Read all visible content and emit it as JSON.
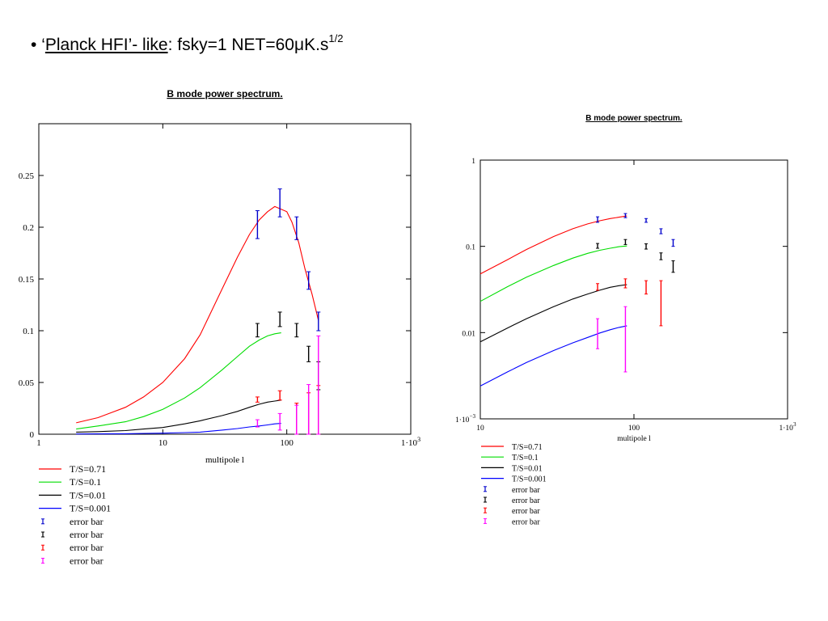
{
  "slide": {
    "bullet": "•",
    "title_open_quote": "‘",
    "title_link": "Planck HFI’- like",
    "title_rest": ": fsky=1 NET=60μK.s",
    "title_sup": "1/2"
  },
  "chart_data": [
    {
      "type": "line",
      "title": "B mode power spectrum.",
      "xlabel": "multipole l",
      "ylabel": "",
      "xscale": "log",
      "yscale": "linear",
      "xlim": [
        1,
        1000
      ],
      "ylim": [
        0,
        0.3
      ],
      "xticks": [
        {
          "v": 1,
          "t": "1"
        },
        {
          "v": 10,
          "t": "10"
        },
        {
          "v": 100,
          "t": "100"
        },
        {
          "v": 1000,
          "t": "1·10",
          "sup": "3"
        }
      ],
      "yticks": [
        {
          "v": 0,
          "t": "0"
        },
        {
          "v": 0.05,
          "t": "0.05"
        },
        {
          "v": 0.1,
          "t": "0.1"
        },
        {
          "v": 0.15,
          "t": "0.15"
        },
        {
          "v": 0.2,
          "t": "0.2"
        },
        {
          "v": 0.25,
          "t": "0.25"
        }
      ],
      "legend_position": "bottom-left",
      "series": [
        {
          "name": "T/S=0.71",
          "color": "#ff0000",
          "x": [
            2,
            3,
            5,
            7,
            10,
            15,
            20,
            30,
            40,
            50,
            60,
            70,
            80,
            100,
            110,
            125,
            140,
            160,
            180
          ],
          "y": [
            0.011,
            0.016,
            0.026,
            0.036,
            0.05,
            0.073,
            0.096,
            0.14,
            0.171,
            0.193,
            0.207,
            0.215,
            0.22,
            0.215,
            0.205,
            0.185,
            0.16,
            0.135,
            0.11
          ]
        },
        {
          "name": "T/S=0.1",
          "color": "#00dd00",
          "x": [
            2,
            3,
            5,
            7,
            10,
            15,
            20,
            30,
            40,
            50,
            60,
            70,
            80,
            90
          ],
          "y": [
            0.005,
            0.008,
            0.012,
            0.017,
            0.024,
            0.035,
            0.045,
            0.062,
            0.075,
            0.085,
            0.091,
            0.095,
            0.097,
            0.098
          ]
        },
        {
          "name": "T/S=0.01",
          "color": "#000000",
          "x": [
            2,
            3,
            5,
            7,
            10,
            15,
            20,
            30,
            40,
            50,
            60,
            70,
            80,
            90
          ],
          "y": [
            0.002,
            0.0025,
            0.0035,
            0.005,
            0.0065,
            0.01,
            0.013,
            0.018,
            0.022,
            0.026,
            0.029,
            0.031,
            0.032,
            0.033
          ]
        },
        {
          "name": "T/S=0.001",
          "color": "#0000ff",
          "x": [
            2,
            3,
            5,
            7,
            10,
            15,
            20,
            30,
            40,
            50,
            60,
            70,
            80,
            90
          ],
          "y": [
            0.0002,
            0.0003,
            0.0005,
            0.0008,
            0.001,
            0.0016,
            0.002,
            0.004,
            0.0055,
            0.007,
            0.008,
            0.009,
            0.01,
            0.0105
          ]
        }
      ],
      "error_bars": [
        {
          "name": "error bar",
          "color": "#0000cc",
          "x": [
            58,
            88,
            120,
            150,
            180
          ],
          "low": [
            0.189,
            0.21,
            0.188,
            0.14,
            0.1
          ],
          "high": [
            0.216,
            0.237,
            0.21,
            0.157,
            0.118
          ]
        },
        {
          "name": "error bar",
          "color": "#000000",
          "x": [
            58,
            88,
            120,
            150,
            180
          ],
          "low": [
            0.094,
            0.104,
            0.094,
            0.07,
            0.043
          ],
          "high": [
            0.107,
            0.118,
            0.107,
            0.085,
            0.07
          ]
        },
        {
          "name": "error bar",
          "color": "#ff0000",
          "x": [
            58,
            88,
            120,
            150,
            180
          ],
          "low": [
            0.031,
            0.033,
            0.0,
            0.0,
            0.0
          ],
          "high": [
            0.036,
            0.042,
            0.03,
            0.04,
            0.047
          ]
        },
        {
          "name": "error bar",
          "color": "#ff00ff",
          "x": [
            58,
            88,
            120,
            150,
            180
          ],
          "low": [
            0.007,
            0.004,
            0.0,
            0.0,
            0.0
          ],
          "high": [
            0.014,
            0.02,
            0.028,
            0.048,
            0.095
          ]
        }
      ]
    },
    {
      "type": "line",
      "title": "B mode power spectrum.",
      "xlabel": "multipole l",
      "ylabel": "",
      "xscale": "log",
      "yscale": "log",
      "xlim": [
        10,
        1000
      ],
      "ylim": [
        0.001,
        1
      ],
      "xticks": [
        {
          "v": 10,
          "t": "10"
        },
        {
          "v": 100,
          "t": "100"
        },
        {
          "v": 1000,
          "t": "1·10",
          "sup": "3"
        }
      ],
      "yticks": [
        {
          "v": 0.001,
          "t": "1·10",
          "sup": "−3"
        },
        {
          "v": 0.01,
          "t": "0.01"
        },
        {
          "v": 0.1,
          "t": "0.1"
        },
        {
          "v": 1,
          "t": "1"
        }
      ],
      "legend_position": "bottom-left",
      "series": [
        {
          "name": "T/S=0.71",
          "color": "#ff0000",
          "x": [
            10,
            15,
            20,
            30,
            40,
            50,
            60,
            70,
            80,
            90
          ],
          "y": [
            0.048,
            0.07,
            0.092,
            0.13,
            0.16,
            0.182,
            0.198,
            0.21,
            0.218,
            0.225
          ]
        },
        {
          "name": "T/S=0.1",
          "color": "#00dd00",
          "x": [
            10,
            15,
            20,
            30,
            40,
            50,
            60,
            70,
            80,
            90
          ],
          "y": [
            0.023,
            0.034,
            0.044,
            0.06,
            0.073,
            0.083,
            0.09,
            0.095,
            0.099,
            0.101
          ]
        },
        {
          "name": "T/S=0.01",
          "color": "#000000",
          "x": [
            10,
            15,
            20,
            30,
            40,
            50,
            60,
            70,
            80,
            90
          ],
          "y": [
            0.0078,
            0.0113,
            0.0145,
            0.02,
            0.0245,
            0.028,
            0.031,
            0.0335,
            0.035,
            0.036
          ]
        },
        {
          "name": "T/S=0.001",
          "color": "#0000ff",
          "x": [
            10,
            15,
            20,
            30,
            40,
            50,
            60,
            70,
            80,
            90
          ],
          "y": [
            0.0024,
            0.0035,
            0.0045,
            0.0062,
            0.0076,
            0.0088,
            0.0099,
            0.0108,
            0.0115,
            0.012
          ]
        }
      ],
      "error_bars": [
        {
          "name": "error bar",
          "color": "#0000cc",
          "x": [
            58,
            88,
            120,
            150,
            180
          ],
          "low": [
            0.19,
            0.215,
            0.19,
            0.14,
            0.1
          ],
          "high": [
            0.22,
            0.24,
            0.21,
            0.16,
            0.12
          ]
        },
        {
          "name": "error bar",
          "color": "#000000",
          "x": [
            58,
            88,
            120,
            150,
            180
          ],
          "low": [
            0.095,
            0.105,
            0.093,
            0.07,
            0.05
          ],
          "high": [
            0.108,
            0.12,
            0.107,
            0.084,
            0.068
          ]
        },
        {
          "name": "error bar",
          "color": "#ff0000",
          "x": [
            58,
            88,
            120,
            150,
            180
          ],
          "low": [
            0.031,
            0.033,
            0.028,
            0.012,
            null
          ],
          "high": [
            0.037,
            0.042,
            0.04,
            0.04,
            null
          ]
        },
        {
          "name": "error bar",
          "color": "#ff00ff",
          "x": [
            58,
            88,
            120,
            150,
            180
          ],
          "low": [
            0.0065,
            0.0035,
            null,
            null,
            null
          ],
          "high": [
            0.0145,
            0.02,
            null,
            null,
            null
          ]
        }
      ]
    }
  ]
}
